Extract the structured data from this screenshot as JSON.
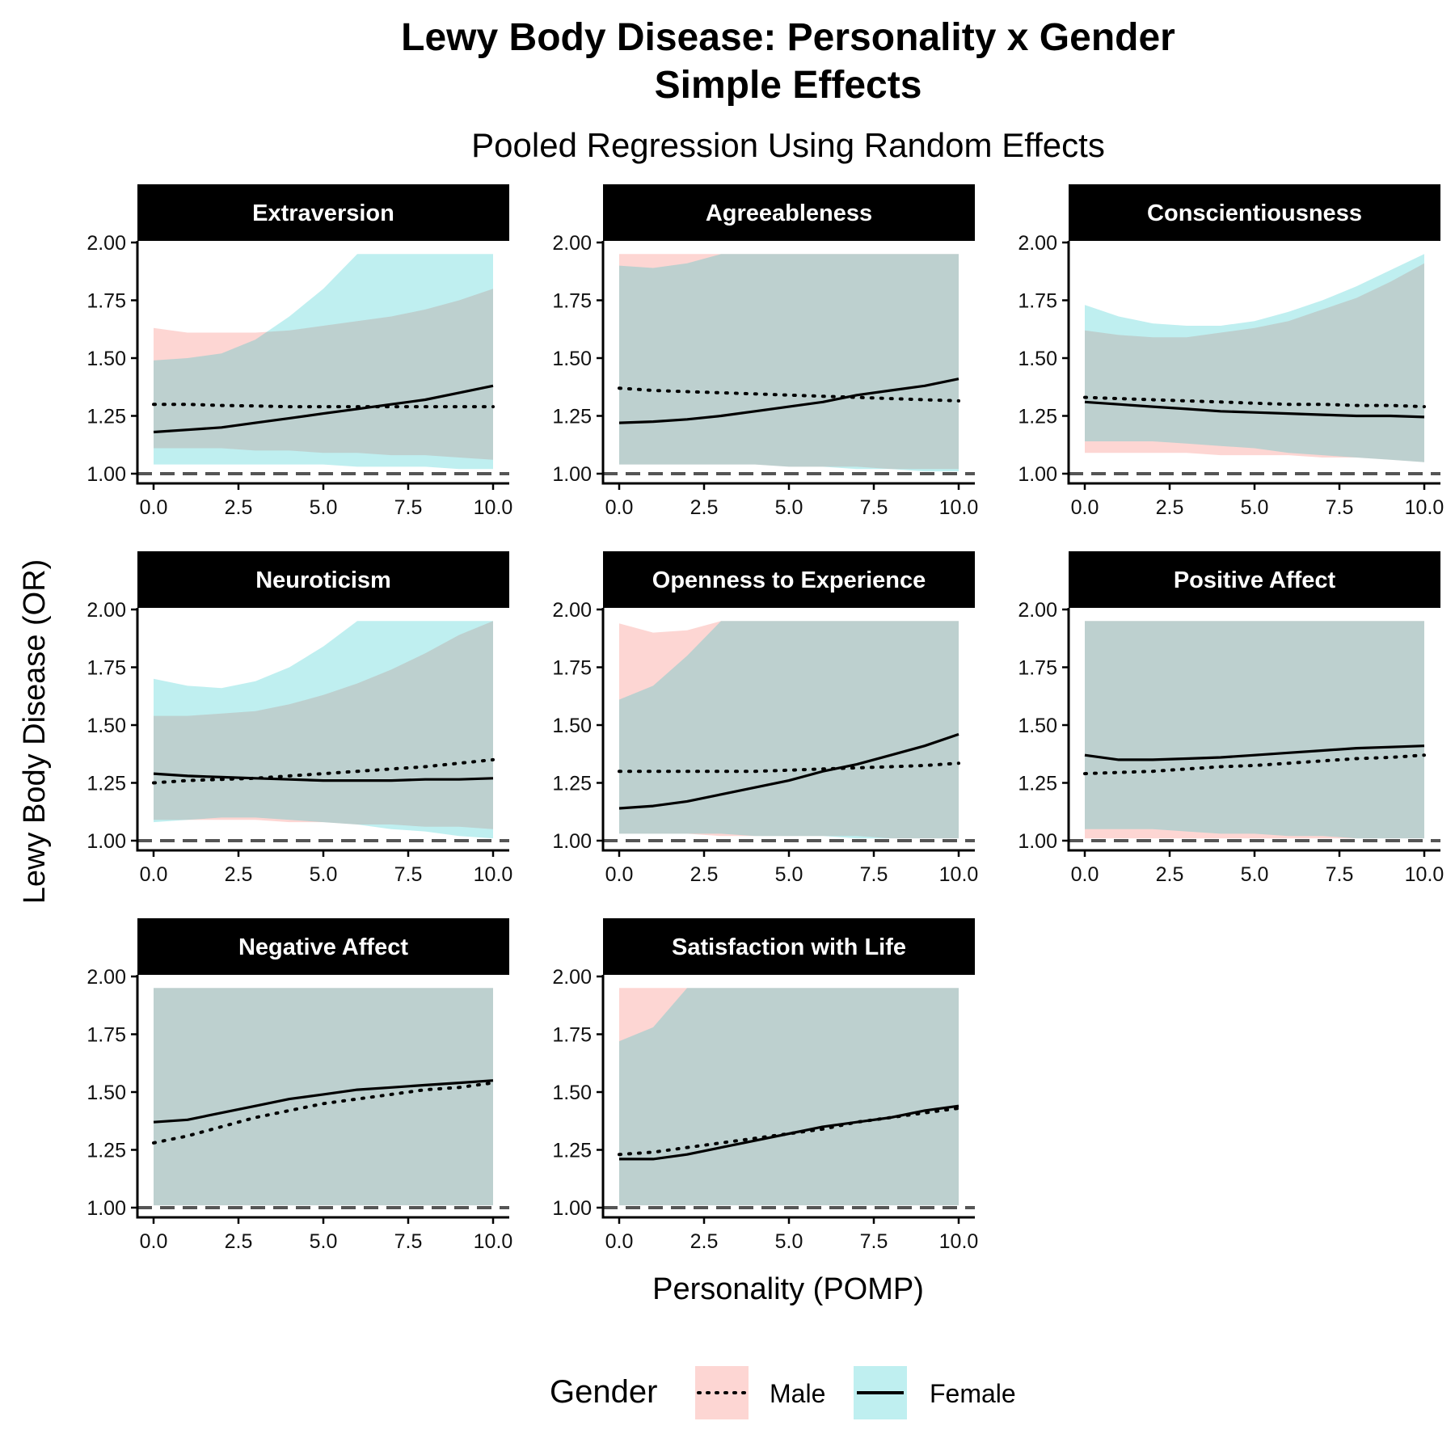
{
  "chart_data": {
    "type": "line",
    "title": "Lewy Body Disease: Personality x Gender",
    "title_line2": "Simple Effects",
    "subtitle": "Pooled Regression Using Random Effects",
    "xlabel": "Personality (POMP)",
    "ylabel": "Lewy Body Disease (OR)",
    "xlim": [
      0,
      10
    ],
    "ylim": [
      1.0,
      2.0
    ],
    "xticks": [
      "0.0",
      "2.5",
      "5.0",
      "7.5",
      "10.0"
    ],
    "yticks": [
      "1.00",
      "1.25",
      "1.50",
      "1.75",
      "2.00"
    ],
    "reference_line": 1.0,
    "grid": false,
    "legend": {
      "title": "Gender",
      "position": "bottom",
      "entries": [
        {
          "name": "Male",
          "linestyle": "dotted",
          "color": "#F8766D"
        },
        {
          "name": "Female",
          "linestyle": "solid",
          "color": "#00BFC4"
        }
      ]
    },
    "x": [
      0,
      1,
      2,
      3,
      4,
      5,
      6,
      7,
      8,
      9,
      10
    ],
    "panels": [
      {
        "name": "Extraversion",
        "male": {
          "est": [
            1.3,
            1.3,
            1.295,
            1.293,
            1.29,
            1.29,
            1.29,
            1.29,
            1.29,
            1.29,
            1.29
          ],
          "lower": [
            1.11,
            1.11,
            1.11,
            1.1,
            1.1,
            1.09,
            1.09,
            1.08,
            1.08,
            1.07,
            1.06
          ],
          "upper": [
            1.63,
            1.61,
            1.61,
            1.61,
            1.62,
            1.64,
            1.66,
            1.68,
            1.71,
            1.75,
            1.8
          ]
        },
        "female": {
          "est": [
            1.18,
            1.19,
            1.2,
            1.22,
            1.24,
            1.26,
            1.28,
            1.3,
            1.32,
            1.35,
            1.38
          ],
          "lower": [
            1.04,
            1.04,
            1.04,
            1.04,
            1.04,
            1.04,
            1.03,
            1.03,
            1.03,
            1.02,
            1.02
          ],
          "upper": [
            1.49,
            1.5,
            1.52,
            1.58,
            1.68,
            1.8,
            1.95,
            1.95,
            1.95,
            1.95,
            1.95
          ]
        }
      },
      {
        "name": "Agreeableness",
        "male": {
          "est": [
            1.37,
            1.36,
            1.355,
            1.35,
            1.345,
            1.34,
            1.335,
            1.33,
            1.325,
            1.32,
            1.315
          ],
          "lower": [
            1.04,
            1.04,
            1.04,
            1.04,
            1.04,
            1.03,
            1.03,
            1.03,
            1.02,
            1.02,
            1.02
          ],
          "upper": [
            1.95,
            1.95,
            1.95,
            1.95,
            1.95,
            1.95,
            1.95,
            1.95,
            1.95,
            1.95,
            1.95
          ]
        },
        "female": {
          "est": [
            1.22,
            1.225,
            1.235,
            1.25,
            1.27,
            1.29,
            1.31,
            1.34,
            1.36,
            1.38,
            1.41
          ],
          "lower": [
            1.04,
            1.04,
            1.04,
            1.04,
            1.04,
            1.03,
            1.03,
            1.02,
            1.02,
            1.01,
            1.01
          ],
          "upper": [
            1.9,
            1.89,
            1.91,
            1.95,
            1.95,
            1.95,
            1.95,
            1.95,
            1.95,
            1.95,
            1.95
          ]
        }
      },
      {
        "name": "Conscientiousness",
        "male": {
          "est": [
            1.33,
            1.325,
            1.32,
            1.315,
            1.31,
            1.305,
            1.3,
            1.3,
            1.295,
            1.295,
            1.29
          ],
          "lower": [
            1.09,
            1.09,
            1.09,
            1.09,
            1.08,
            1.08,
            1.08,
            1.07,
            1.07,
            1.06,
            1.05
          ],
          "upper": [
            1.62,
            1.6,
            1.59,
            1.59,
            1.61,
            1.63,
            1.66,
            1.71,
            1.76,
            1.83,
            1.91
          ]
        },
        "female": {
          "est": [
            1.31,
            1.3,
            1.29,
            1.28,
            1.27,
            1.265,
            1.26,
            1.255,
            1.25,
            1.25,
            1.245
          ],
          "lower": [
            1.14,
            1.14,
            1.14,
            1.13,
            1.12,
            1.11,
            1.09,
            1.08,
            1.07,
            1.06,
            1.05
          ],
          "upper": [
            1.73,
            1.68,
            1.65,
            1.64,
            1.64,
            1.66,
            1.7,
            1.75,
            1.81,
            1.88,
            1.95
          ]
        }
      },
      {
        "name": "Neuroticism",
        "male": {
          "est": [
            1.25,
            1.26,
            1.265,
            1.27,
            1.28,
            1.29,
            1.3,
            1.31,
            1.32,
            1.335,
            1.35
          ],
          "lower": [
            1.09,
            1.09,
            1.09,
            1.09,
            1.08,
            1.08,
            1.07,
            1.07,
            1.06,
            1.06,
            1.05
          ],
          "upper": [
            1.54,
            1.54,
            1.55,
            1.56,
            1.59,
            1.63,
            1.68,
            1.74,
            1.81,
            1.89,
            1.95
          ]
        },
        "female": {
          "est": [
            1.29,
            1.28,
            1.275,
            1.27,
            1.265,
            1.26,
            1.26,
            1.26,
            1.265,
            1.265,
            1.27
          ],
          "lower": [
            1.08,
            1.09,
            1.1,
            1.1,
            1.09,
            1.08,
            1.07,
            1.05,
            1.04,
            1.02,
            1.01
          ],
          "upper": [
            1.7,
            1.67,
            1.66,
            1.69,
            1.75,
            1.84,
            1.95,
            1.95,
            1.95,
            1.95,
            1.95
          ]
        }
      },
      {
        "name": "Openness to Experience",
        "male": {
          "est": [
            1.3,
            1.3,
            1.3,
            1.3,
            1.3,
            1.305,
            1.31,
            1.315,
            1.32,
            1.325,
            1.335
          ],
          "lower": [
            1.03,
            1.03,
            1.03,
            1.02,
            1.02,
            1.02,
            1.02,
            1.02,
            1.01,
            1.01,
            1.01
          ],
          "upper": [
            1.94,
            1.9,
            1.91,
            1.95,
            1.95,
            1.95,
            1.95,
            1.95,
            1.95,
            1.95,
            1.95
          ]
        },
        "female": {
          "est": [
            1.14,
            1.15,
            1.17,
            1.2,
            1.23,
            1.26,
            1.3,
            1.33,
            1.37,
            1.41,
            1.46
          ],
          "lower": [
            1.03,
            1.03,
            1.03,
            1.03,
            1.02,
            1.02,
            1.02,
            1.01,
            1.01,
            1.01,
            1.01
          ],
          "upper": [
            1.61,
            1.67,
            1.8,
            1.95,
            1.95,
            1.95,
            1.95,
            1.95,
            1.95,
            1.95,
            1.95
          ]
        }
      },
      {
        "name": "Positive Affect",
        "male": {
          "est": [
            1.29,
            1.295,
            1.3,
            1.31,
            1.32,
            1.325,
            1.335,
            1.345,
            1.355,
            1.36,
            1.37
          ],
          "lower": [
            1.01,
            1.01,
            1.01,
            1.01,
            1.01,
            1.01,
            1.01,
            1.01,
            1.01,
            1.01,
            1.01
          ],
          "upper": [
            1.95,
            1.95,
            1.95,
            1.95,
            1.95,
            1.95,
            1.95,
            1.95,
            1.95,
            1.95,
            1.95
          ]
        },
        "female": {
          "est": [
            1.37,
            1.35,
            1.35,
            1.355,
            1.36,
            1.37,
            1.38,
            1.39,
            1.4,
            1.405,
            1.41
          ],
          "lower": [
            1.05,
            1.05,
            1.05,
            1.04,
            1.03,
            1.03,
            1.02,
            1.02,
            1.01,
            1.01,
            1.01
          ],
          "upper": [
            1.95,
            1.95,
            1.95,
            1.95,
            1.95,
            1.95,
            1.95,
            1.95,
            1.95,
            1.95,
            1.95
          ]
        }
      },
      {
        "name": "Negative Affect",
        "male": {
          "est": [
            1.28,
            1.31,
            1.35,
            1.39,
            1.42,
            1.45,
            1.47,
            1.49,
            1.51,
            1.52,
            1.54
          ],
          "lower": [
            1.01,
            1.01,
            1.01,
            1.01,
            1.01,
            1.01,
            1.01,
            1.01,
            1.01,
            1.01,
            1.01
          ],
          "upper": [
            1.95,
            1.95,
            1.95,
            1.95,
            1.95,
            1.95,
            1.95,
            1.95,
            1.95,
            1.95,
            1.95
          ]
        },
        "female": {
          "est": [
            1.37,
            1.38,
            1.41,
            1.44,
            1.47,
            1.49,
            1.51,
            1.52,
            1.53,
            1.54,
            1.55
          ],
          "lower": [
            1.01,
            1.01,
            1.01,
            1.01,
            1.01,
            1.01,
            1.01,
            1.01,
            1.01,
            1.01,
            1.01
          ],
          "upper": [
            1.95,
            1.95,
            1.95,
            1.95,
            1.95,
            1.95,
            1.95,
            1.95,
            1.95,
            1.95,
            1.95
          ]
        }
      },
      {
        "name": "Satisfaction with Life",
        "male": {
          "est": [
            1.23,
            1.24,
            1.26,
            1.28,
            1.3,
            1.32,
            1.34,
            1.37,
            1.39,
            1.41,
            1.43
          ],
          "lower": [
            1.01,
            1.01,
            1.01,
            1.01,
            1.01,
            1.01,
            1.01,
            1.01,
            1.01,
            1.01,
            1.01
          ],
          "upper": [
            1.95,
            1.95,
            1.95,
            1.95,
            1.95,
            1.95,
            1.95,
            1.95,
            1.95,
            1.95,
            1.95
          ]
        },
        "female": {
          "est": [
            1.21,
            1.21,
            1.23,
            1.26,
            1.29,
            1.32,
            1.35,
            1.37,
            1.39,
            1.42,
            1.44
          ],
          "lower": [
            1.01,
            1.01,
            1.01,
            1.01,
            1.01,
            1.01,
            1.01,
            1.01,
            1.01,
            1.01,
            1.01
          ],
          "upper": [
            1.72,
            1.78,
            1.95,
            1.95,
            1.95,
            1.95,
            1.95,
            1.95,
            1.95,
            1.95,
            1.95
          ]
        }
      }
    ]
  }
}
